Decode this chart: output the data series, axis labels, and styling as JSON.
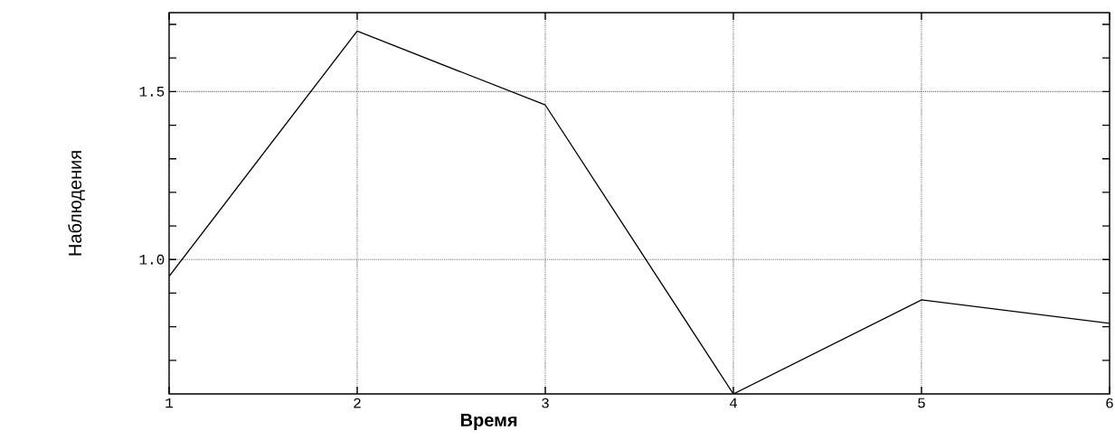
{
  "chart_data": {
    "type": "line",
    "xlabel": "Время",
    "ylabel": "Наблюдения",
    "x": [
      1,
      2,
      3,
      4,
      5,
      6
    ],
    "series": [
      {
        "color": "#000000",
        "values": [
          0.95,
          1.68,
          1.46,
          0.6,
          0.88,
          0.81
        ]
      }
    ],
    "xlim": [
      1,
      6
    ],
    "xticks": [
      1,
      2,
      3,
      4,
      5,
      6
    ],
    "ylim": [
      0.6,
      1.735
    ],
    "yticks": [
      {
        "value": 0.7,
        "label": null
      },
      {
        "value": 0.8,
        "label": null
      },
      {
        "value": 0.9,
        "label": null
      },
      {
        "value": 1.0,
        "label": "1.0"
      },
      {
        "value": 1.1,
        "label": null
      },
      {
        "value": 1.2,
        "label": null
      },
      {
        "value": 1.3,
        "label": null
      },
      {
        "value": 1.4,
        "label": null
      },
      {
        "value": 1.5,
        "label": "1.5"
      },
      {
        "value": 1.6,
        "label": null
      },
      {
        "value": 1.7,
        "label": null
      }
    ],
    "grid": true,
    "marker": "none",
    "line_style": "solid"
  }
}
